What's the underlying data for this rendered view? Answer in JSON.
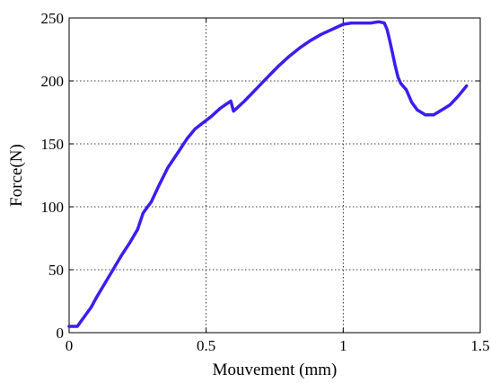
{
  "chart_data": {
    "type": "line",
    "title": "",
    "xlabel": "Mouvement (mm)",
    "ylabel": "Force(N)",
    "xlim": [
      0,
      1.5
    ],
    "ylim": [
      0,
      250
    ],
    "xticks": [
      0,
      0.5,
      1,
      1.5
    ],
    "xtick_labels": [
      "0",
      "0.5",
      "1",
      "1.5"
    ],
    "yticks": [
      0,
      50,
      100,
      150,
      200,
      250
    ],
    "ytick_labels": [
      "0",
      "50",
      "100",
      "150",
      "200",
      "250"
    ],
    "grid": true,
    "legend": "none",
    "series": [
      {
        "color": "#3a1ef0",
        "x": [
          0,
          0.03,
          0.04,
          0.06,
          0.08,
          0.1,
          0.13,
          0.16,
          0.19,
          0.22,
          0.25,
          0.27,
          0.29,
          0.3,
          0.33,
          0.36,
          0.4,
          0.43,
          0.46,
          0.49,
          0.52,
          0.55,
          0.57,
          0.59,
          0.6,
          0.61,
          0.64,
          0.68,
          0.72,
          0.76,
          0.8,
          0.84,
          0.88,
          0.92,
          0.96,
          1.0,
          1.03,
          1.06,
          1.1,
          1.13,
          1.15,
          1.16,
          1.17,
          1.18,
          1.19,
          1.2,
          1.21,
          1.23,
          1.25,
          1.27,
          1.3,
          1.33,
          1.36,
          1.39,
          1.42,
          1.45
        ],
        "values": [
          5,
          5,
          8,
          14,
          20,
          28,
          39,
          50,
          61,
          71,
          82,
          95,
          101,
          104,
          118,
          131,
          144,
          154,
          162,
          167,
          172,
          178,
          181,
          184,
          176,
          178,
          184,
          193,
          202,
          211,
          219,
          226,
          232,
          237,
          241,
          245,
          246,
          246,
          246,
          247,
          246,
          241,
          232,
          222,
          212,
          203,
          198,
          193,
          183,
          177,
          173,
          173,
          177,
          181,
          188,
          196
        ]
      }
    ]
  }
}
